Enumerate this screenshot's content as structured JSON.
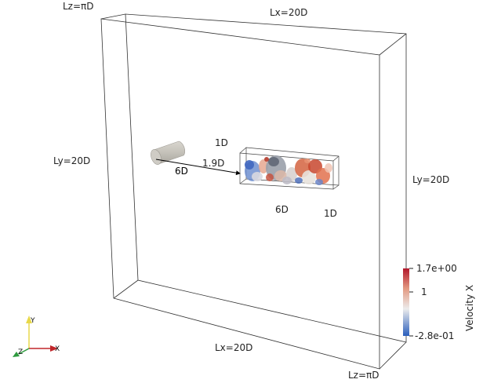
{
  "labels": {
    "lz_top": "Lz=πD",
    "lx_top": "Lx=20D",
    "ly_left": "Ly=20D",
    "ly_right": "Ly=20D",
    "lx_bottom": "Lx=20D",
    "lz_bottom": "Lz=πD",
    "dist_cyl": "6D",
    "gap": "1.9D",
    "box_height": "1D",
    "box_length": "6D",
    "box_depth": "1D"
  },
  "colorbar": {
    "title": "Velocity X",
    "max": "1.7e+00",
    "mid": "1",
    "min": "-2.8e-01",
    "colors": {
      "high": "#b2182b",
      "mid": "#f7f7f7",
      "low": "#2b5fbd"
    }
  },
  "axes": {
    "x": "X",
    "y": "Y",
    "z": "Z"
  }
}
